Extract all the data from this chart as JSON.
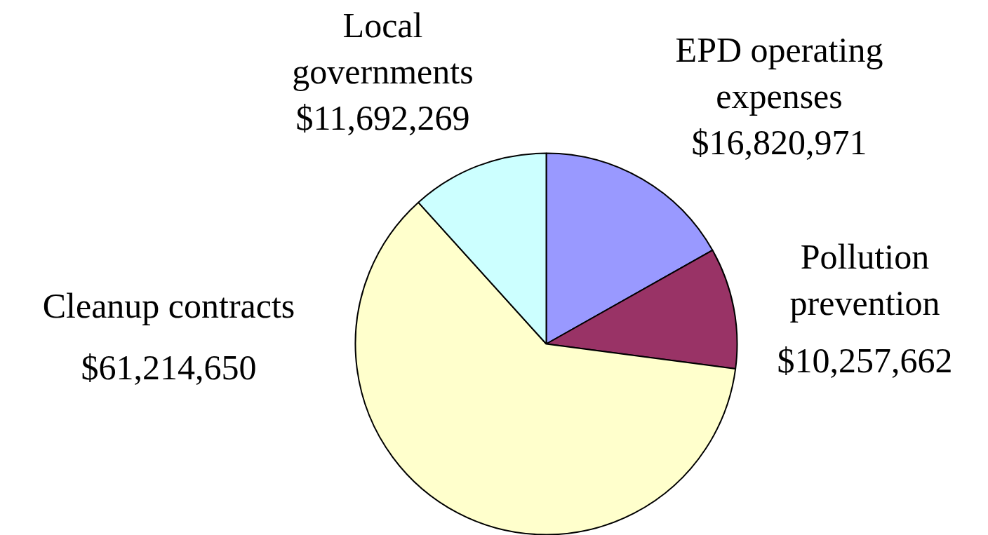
{
  "chart_data": {
    "type": "pie",
    "categories": [
      "EPD operating expenses",
      "Pollution prevention",
      "Cleanup contracts",
      "Local governments"
    ],
    "values": [
      16820971,
      10257662,
      61214650,
      11692269
    ],
    "colors": [
      "#9999ff",
      "#993366",
      "#ffffcc",
      "#ccffff"
    ],
    "value_labels": [
      "$16,820,971",
      "$10,257,662",
      "$61,214,650",
      "$11,692,269"
    ]
  }
}
